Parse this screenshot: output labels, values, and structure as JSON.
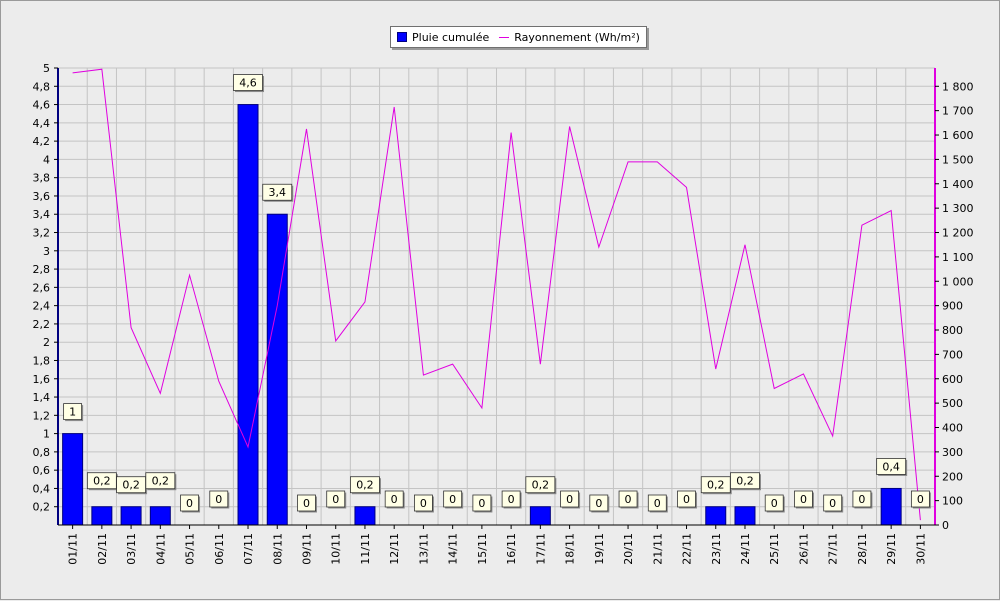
{
  "chart_data": {
    "type": "bar",
    "title": "",
    "categories": [
      "01/11",
      "02/11",
      "03/11",
      "04/11",
      "05/11",
      "06/11",
      "07/11",
      "08/11",
      "09/11",
      "10/11",
      "11/11",
      "12/11",
      "13/11",
      "14/11",
      "15/11",
      "16/11",
      "17/11",
      "18/11",
      "19/11",
      "20/11",
      "21/11",
      "22/11",
      "23/11",
      "24/11",
      "25/11",
      "26/11",
      "27/11",
      "28/11",
      "29/11",
      "30/11"
    ],
    "series": [
      {
        "name": "Pluie cumulée",
        "type": "bar",
        "axis": "left",
        "color": "#0000ff",
        "values": [
          1,
          0.2,
          0.2,
          0.2,
          0,
          0,
          4.6,
          3.4,
          0,
          0,
          0.2,
          0,
          0,
          0,
          0,
          0,
          0.2,
          0,
          0,
          0,
          0,
          0,
          0.2,
          0.2,
          0,
          0,
          0,
          0,
          0.4,
          0
        ],
        "labels": [
          "1",
          "0,2",
          "0,2",
          "0,2",
          "0",
          "0",
          "4,6",
          "3,4",
          "0",
          "0",
          "0,2",
          "0",
          "0",
          "0",
          "0",
          "0",
          "0,2",
          "0",
          "0",
          "0",
          "0",
          "0",
          "0,2",
          "0,2",
          "0",
          "0",
          "0",
          "0",
          "0,4",
          "0"
        ]
      },
      {
        "name": "Rayonnement (Wh/m²)",
        "type": "line",
        "axis": "right",
        "color": "#e000e0",
        "values": [
          1855,
          1870,
          810,
          540,
          1025,
          590,
          320,
          900,
          1625,
          755,
          915,
          1715,
          615,
          660,
          480,
          1610,
          660,
          1635,
          1140,
          1490,
          1490,
          1385,
          640,
          1150,
          560,
          620,
          365,
          1230,
          1290,
          20
        ]
      }
    ],
    "y_left": {
      "min": 0,
      "max": 5,
      "step": 0.2,
      "tick_labels": [
        "0,2",
        "0,4",
        "0,6",
        "0,8",
        "1",
        "1,2",
        "1,4",
        "1,6",
        "1,8",
        "2",
        "2,2",
        "2,4",
        "2,6",
        "2,8",
        "3",
        "3,2",
        "3,4",
        "3,6",
        "3,8",
        "4",
        "4,2",
        "4,4",
        "4,6",
        "4,8",
        "5"
      ]
    },
    "y_right": {
      "min": 0,
      "max": 1875,
      "step": 100,
      "tick_labels": [
        "0",
        "100",
        "200",
        "300",
        "400",
        "500",
        "600",
        "700",
        "800",
        "900",
        "1 000",
        "1 100",
        "1 200",
        "1 300",
        "1 400",
        "1 500",
        "1 600",
        "1 700",
        "1 800"
      ]
    },
    "grid": true,
    "legend_position": "top-center"
  }
}
